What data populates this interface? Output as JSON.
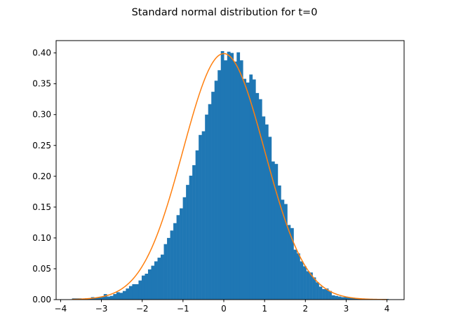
{
  "chart_data": {
    "type": "bar",
    "title": "Standard normal distribution for t=0",
    "xlabel": "",
    "ylabel": "",
    "xlim": [
      -4.11,
      4.42
    ],
    "ylim": [
      0,
      0.42
    ],
    "grid": false,
    "x_ticks": [
      -4,
      -3,
      -2,
      -1,
      0,
      1,
      2,
      3,
      4
    ],
    "x_tick_labels": [
      "−4",
      "−3",
      "−2",
      "−1",
      "0",
      "1",
      "2",
      "3",
      "4"
    ],
    "y_ticks": [
      0.0,
      0.05,
      0.1,
      0.15,
      0.2,
      0.25,
      0.3,
      0.35,
      0.4
    ],
    "y_tick_labels": [
      "0.00",
      "0.05",
      "0.10",
      "0.15",
      "0.20",
      "0.25",
      "0.30",
      "0.35",
      "0.40"
    ],
    "bar_color": "#1f77b4",
    "curve_color": "#ff7f0e",
    "histogram": {
      "bin_start": -3.72,
      "bin_width": 0.0776,
      "heights": [
        0.002,
        0.002,
        0.002,
        0.001,
        0.002,
        0.002,
        0.004,
        0.003,
        0.004,
        0.005,
        0.009,
        0.005,
        0.006,
        0.009,
        0.012,
        0.011,
        0.014,
        0.018,
        0.022,
        0.025,
        0.025,
        0.031,
        0.039,
        0.042,
        0.049,
        0.055,
        0.062,
        0.068,
        0.073,
        0.09,
        0.1,
        0.112,
        0.124,
        0.137,
        0.148,
        0.166,
        0.186,
        0.201,
        0.218,
        0.242,
        0.267,
        0.273,
        0.3,
        0.317,
        0.337,
        0.355,
        0.372,
        0.403,
        0.388,
        0.402,
        0.4,
        0.386,
        0.401,
        0.388,
        0.358,
        0.352,
        0.365,
        0.357,
        0.335,
        0.325,
        0.297,
        0.284,
        0.264,
        0.224,
        0.22,
        0.185,
        0.162,
        0.155,
        0.121,
        0.116,
        0.081,
        0.075,
        0.062,
        0.054,
        0.046,
        0.044,
        0.036,
        0.028,
        0.021,
        0.017,
        0.018,
        0.014,
        0.007,
        0.006,
        0.005,
        0.004,
        0.004,
        0.003,
        0.003,
        0.002,
        0.002,
        0.001,
        0.001,
        0.001,
        0.001,
        0.001,
        0.001,
        0.001,
        0.001,
        0.001
      ]
    },
    "curve": {
      "label": "",
      "function": "normal_pdf",
      "mean": 0,
      "std": 1,
      "x_range": [
        -3.72,
        4.0
      ]
    }
  }
}
